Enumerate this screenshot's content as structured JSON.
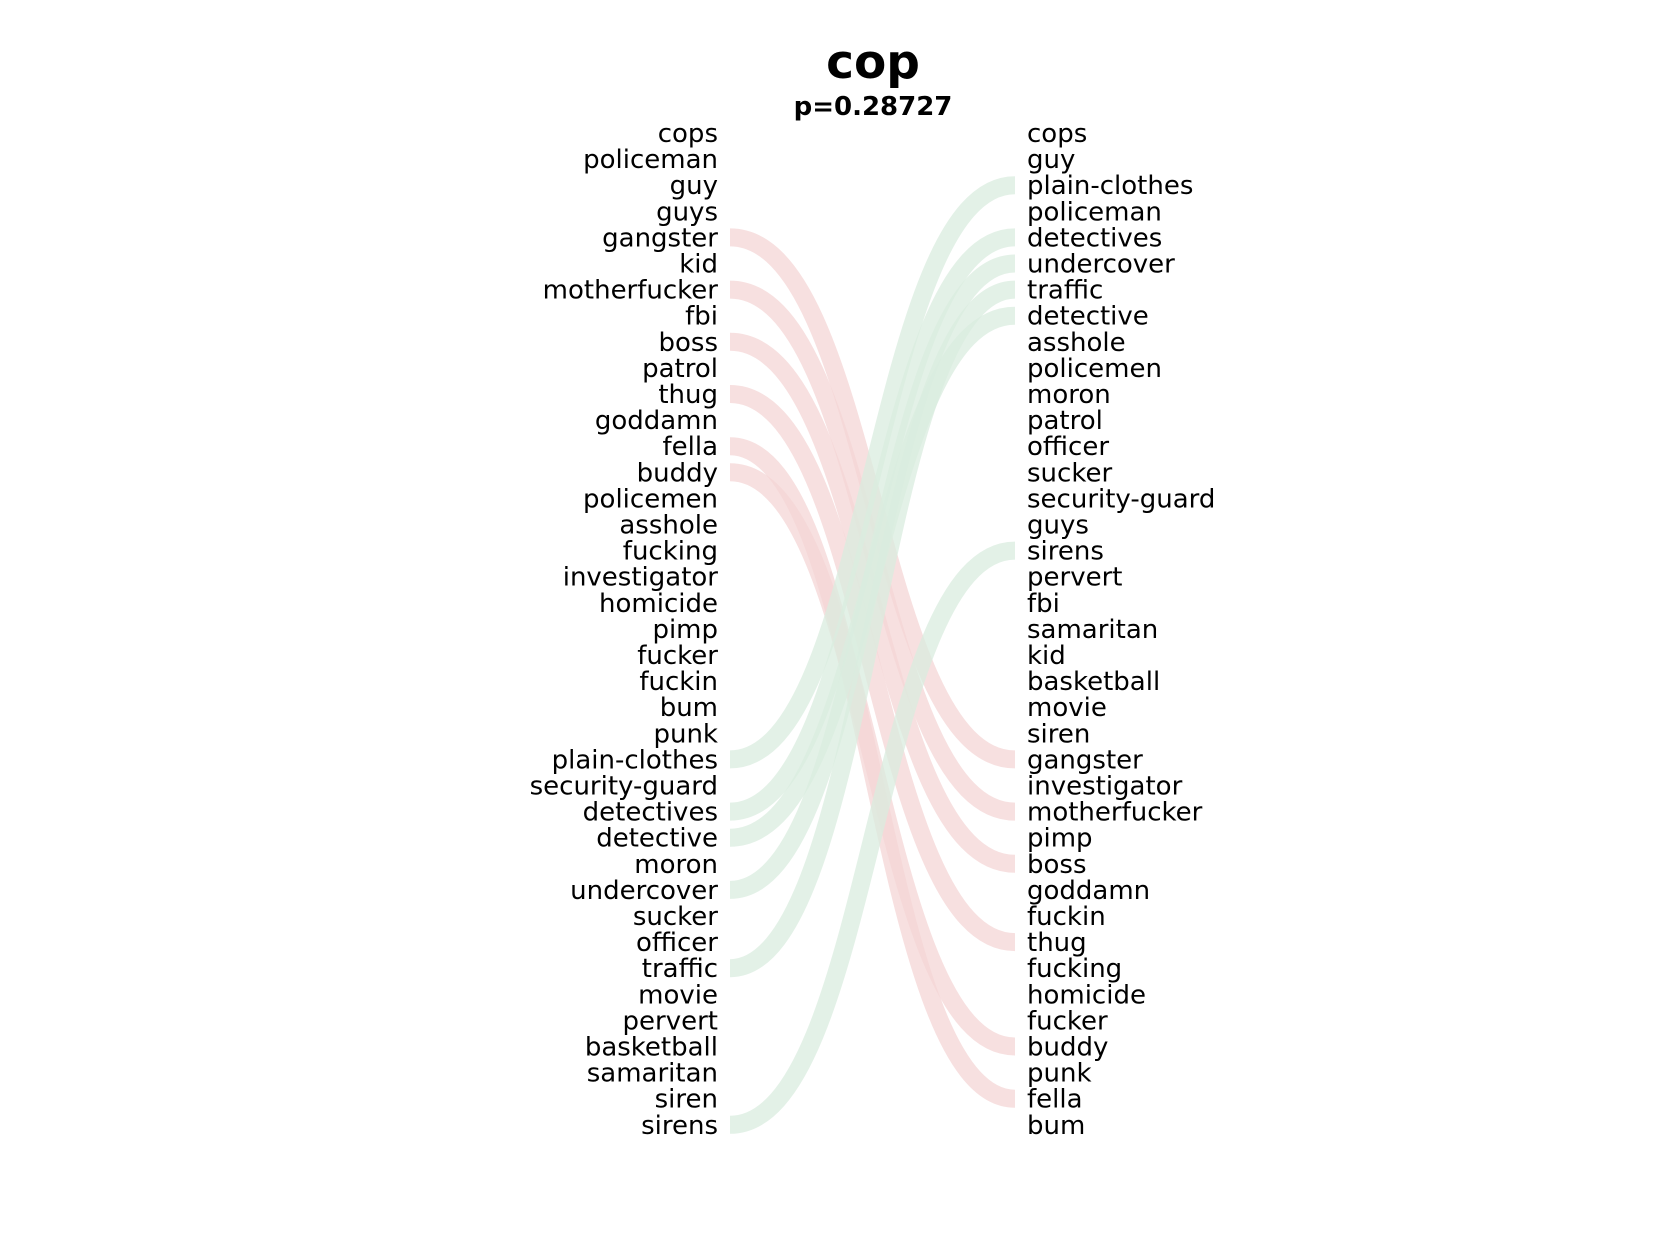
{
  "chart_data": {
    "type": "bump",
    "title": "cop",
    "subtitle": "p=0.28727",
    "left_words": [
      "cops",
      "policeman",
      "guy",
      "guys",
      "gangster",
      "kid",
      "motherfucker",
      "fbi",
      "boss",
      "patrol",
      "thug",
      "goddamn",
      "fella",
      "buddy",
      "policemen",
      "asshole",
      "fucking",
      "investigator",
      "homicide",
      "pimp",
      "fucker",
      "fuckin",
      "bum",
      "punk",
      "plain-clothes",
      "security-guard",
      "detectives",
      "detective",
      "moron",
      "undercover",
      "sucker",
      "officer",
      "traffic",
      "movie",
      "pervert",
      "basketball",
      "samaritan",
      "siren",
      "sirens"
    ],
    "right_words": [
      "cops",
      "guy",
      "plain-clothes",
      "policeman",
      "detectives",
      "undercover",
      "traffic",
      "detective",
      "asshole",
      "policemen",
      "moron",
      "patrol",
      "officer",
      "sucker",
      "security-guard",
      "guys",
      "sirens",
      "pervert",
      "fbi",
      "samaritan",
      "kid",
      "basketball",
      "movie",
      "siren",
      "gangster",
      "investigator",
      "motherfucker",
      "pimp",
      "boss",
      "goddamn",
      "fuckin",
      "thug",
      "fucking",
      "homicide",
      "fucker",
      "buddy",
      "punk",
      "fella",
      "bum"
    ],
    "moved_down": [
      "gangster",
      "motherfucker",
      "boss",
      "thug",
      "fella",
      "buddy"
    ],
    "moved_up": [
      "plain-clothes",
      "detectives",
      "detective",
      "undercover",
      "traffic",
      "sirens"
    ],
    "colors": {
      "moved_down": "#f4d6d6",
      "moved_up": "#d9ecdf",
      "text": "#000000"
    }
  }
}
